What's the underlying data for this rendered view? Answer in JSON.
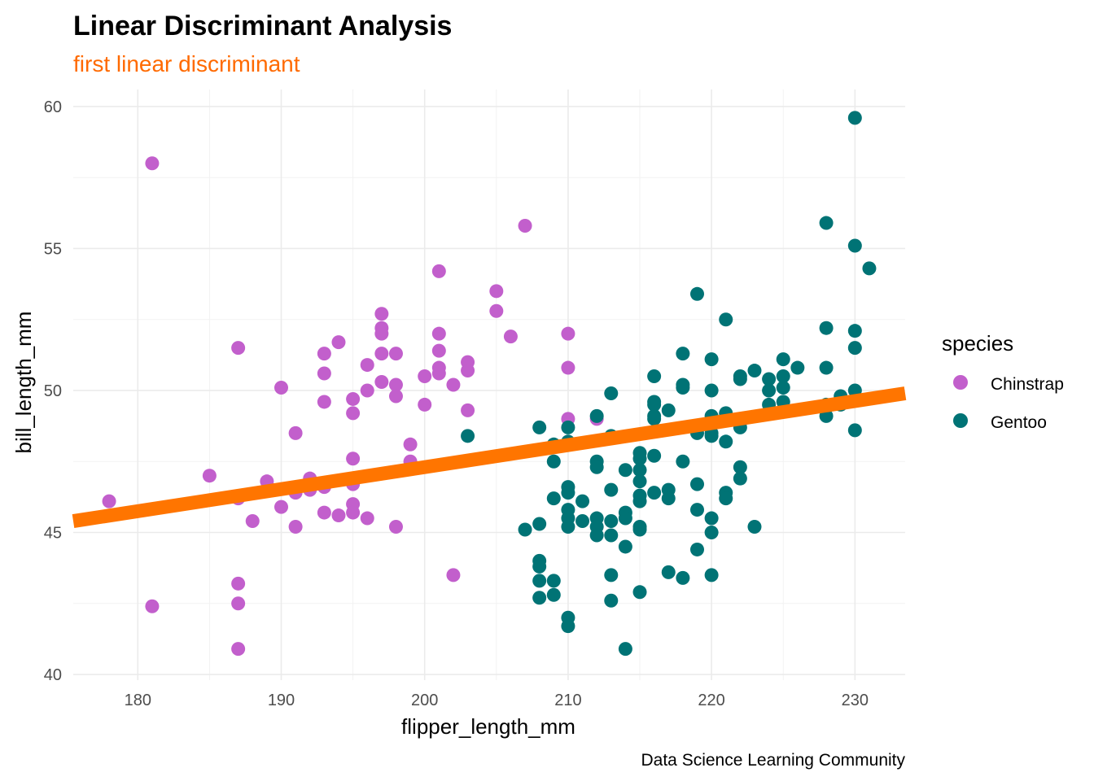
{
  "chart_data": {
    "type": "scatter",
    "title": "Linear Discriminant Analysis",
    "subtitle": "first linear discriminant",
    "xlabel": "flipper_length_mm",
    "ylabel": "bill_length_mm",
    "caption": "Data Science Learning Community",
    "xlim": [
      175.5,
      233.5
    ],
    "ylim": [
      39.8,
      60.6
    ],
    "x_ticks": [
      180,
      190,
      200,
      210,
      220,
      230
    ],
    "y_ticks": [
      40,
      45,
      50,
      55,
      60
    ],
    "grid": true,
    "legend": {
      "title": "species",
      "placement": "right",
      "entries": [
        "Chinstrap",
        "Gentoo"
      ]
    },
    "colors": {
      "Chinstrap": "#c25fcc",
      "Gentoo": "#007375",
      "line": "#ff7500",
      "subtitle": "#ff6a00"
    },
    "line": {
      "x": [
        175.5,
        233.5
      ],
      "y": [
        45.4,
        49.9
      ]
    },
    "series": [
      {
        "name": "Chinstrap",
        "points": [
          [
            178,
            46.1
          ],
          [
            181,
            58.0
          ],
          [
            181,
            42.4
          ],
          [
            185,
            47.0
          ],
          [
            187,
            51.5
          ],
          [
            187,
            46.2
          ],
          [
            187,
            43.2
          ],
          [
            187,
            42.5
          ],
          [
            187,
            40.9
          ],
          [
            188,
            45.4
          ],
          [
            189,
            46.8
          ],
          [
            190,
            50.1
          ],
          [
            190,
            45.9
          ],
          [
            191,
            48.5
          ],
          [
            191,
            46.4
          ],
          [
            191,
            45.2
          ],
          [
            192,
            46.9
          ],
          [
            192,
            46.5
          ],
          [
            193,
            51.3
          ],
          [
            193,
            50.6
          ],
          [
            193,
            49.6
          ],
          [
            193,
            46.6
          ],
          [
            193,
            45.7
          ],
          [
            194,
            51.7
          ],
          [
            194,
            45.6
          ],
          [
            195,
            49.7
          ],
          [
            195,
            49.2
          ],
          [
            195,
            47.6
          ],
          [
            195,
            46.7
          ],
          [
            195,
            46.0
          ],
          [
            195,
            45.7
          ],
          [
            196,
            50.9
          ],
          [
            196,
            50.0
          ],
          [
            196,
            45.5
          ],
          [
            197,
            52.7
          ],
          [
            197,
            52.2
          ],
          [
            197,
            52.0
          ],
          [
            197,
            51.3
          ],
          [
            197,
            50.3
          ],
          [
            198,
            51.3
          ],
          [
            198,
            50.2
          ],
          [
            198,
            49.8
          ],
          [
            198,
            45.2
          ],
          [
            199,
            48.1
          ],
          [
            199,
            47.5
          ],
          [
            200,
            50.5
          ],
          [
            200,
            49.5
          ],
          [
            201,
            54.2
          ],
          [
            201,
            52.0
          ],
          [
            201,
            51.4
          ],
          [
            201,
            50.8
          ],
          [
            201,
            50.6
          ],
          [
            202,
            50.2
          ],
          [
            202,
            43.5
          ],
          [
            203,
            51.0
          ],
          [
            203,
            50.7
          ],
          [
            203,
            49.3
          ],
          [
            205,
            53.5
          ],
          [
            205,
            52.8
          ],
          [
            206,
            51.9
          ],
          [
            207,
            55.8
          ],
          [
            210,
            52.0
          ],
          [
            210,
            50.8
          ],
          [
            210,
            49.0
          ],
          [
            212,
            49.0
          ]
        ]
      },
      {
        "name": "Gentoo",
        "points": [
          [
            203,
            48.4
          ],
          [
            207,
            45.1
          ],
          [
            208,
            48.7
          ],
          [
            208,
            45.3
          ],
          [
            208,
            44.0
          ],
          [
            208,
            43.8
          ],
          [
            208,
            43.3
          ],
          [
            208,
            42.7
          ],
          [
            209,
            48.1
          ],
          [
            209,
            47.5
          ],
          [
            209,
            46.2
          ],
          [
            209,
            43.3
          ],
          [
            209,
            42.8
          ],
          [
            210,
            48.7
          ],
          [
            210,
            48.2
          ],
          [
            210,
            46.6
          ],
          [
            210,
            46.4
          ],
          [
            210,
            45.8
          ],
          [
            210,
            45.5
          ],
          [
            210,
            45.2
          ],
          [
            210,
            42.0
          ],
          [
            210,
            41.7
          ],
          [
            211,
            46.1
          ],
          [
            211,
            45.4
          ],
          [
            212,
            49.1
          ],
          [
            212,
            47.5
          ],
          [
            212,
            47.3
          ],
          [
            212,
            45.5
          ],
          [
            212,
            45.2
          ],
          [
            212,
            44.9
          ],
          [
            213,
            49.9
          ],
          [
            213,
            48.4
          ],
          [
            213,
            46.5
          ],
          [
            213,
            45.4
          ],
          [
            213,
            44.9
          ],
          [
            213,
            43.5
          ],
          [
            213,
            42.6
          ],
          [
            214,
            47.2
          ],
          [
            214,
            45.7
          ],
          [
            214,
            45.5
          ],
          [
            214,
            44.5
          ],
          [
            214,
            40.9
          ],
          [
            215,
            47.8
          ],
          [
            215,
            47.6
          ],
          [
            215,
            47.2
          ],
          [
            215,
            46.8
          ],
          [
            215,
            46.3
          ],
          [
            215,
            46.1
          ],
          [
            215,
            45.2
          ],
          [
            215,
            45.1
          ],
          [
            215,
            42.9
          ],
          [
            216,
            50.5
          ],
          [
            216,
            49.6
          ],
          [
            216,
            49.5
          ],
          [
            216,
            49.1
          ],
          [
            216,
            49.0
          ],
          [
            216,
            47.7
          ],
          [
            216,
            46.4
          ],
          [
            217,
            49.3
          ],
          [
            217,
            46.5
          ],
          [
            217,
            46.2
          ],
          [
            217,
            43.6
          ],
          [
            218,
            51.3
          ],
          [
            218,
            50.2
          ],
          [
            218,
            50.1
          ],
          [
            218,
            47.5
          ],
          [
            218,
            43.4
          ],
          [
            219,
            53.4
          ],
          [
            219,
            48.7
          ],
          [
            219,
            48.5
          ],
          [
            219,
            46.7
          ],
          [
            219,
            45.8
          ],
          [
            219,
            44.4
          ],
          [
            220,
            51.1
          ],
          [
            220,
            50.0
          ],
          [
            220,
            49.1
          ],
          [
            220,
            48.8
          ],
          [
            220,
            48.5
          ],
          [
            220,
            48.4
          ],
          [
            220,
            45.5
          ],
          [
            220,
            45.0
          ],
          [
            220,
            43.5
          ],
          [
            221,
            52.5
          ],
          [
            221,
            49.2
          ],
          [
            221,
            48.2
          ],
          [
            221,
            46.4
          ],
          [
            221,
            46.2
          ],
          [
            222,
            50.5
          ],
          [
            222,
            50.4
          ],
          [
            222,
            48.7
          ],
          [
            222,
            47.3
          ],
          [
            222,
            46.9
          ],
          [
            223,
            50.7
          ],
          [
            223,
            45.2
          ],
          [
            224,
            50.4
          ],
          [
            224,
            50.0
          ],
          [
            224,
            49.5
          ],
          [
            225,
            51.1
          ],
          [
            225,
            50.5
          ],
          [
            225,
            50.1
          ],
          [
            225,
            49.6
          ],
          [
            226,
            50.8
          ],
          [
            228,
            55.9
          ],
          [
            228,
            52.2
          ],
          [
            228,
            50.8
          ],
          [
            228,
            49.5
          ],
          [
            228,
            49.1
          ],
          [
            229,
            49.8
          ],
          [
            229,
            49.5
          ],
          [
            230,
            59.6
          ],
          [
            230,
            55.1
          ],
          [
            230,
            52.1
          ],
          [
            230,
            51.5
          ],
          [
            230,
            50.0
          ],
          [
            230,
            48.6
          ],
          [
            231,
            54.3
          ]
        ]
      }
    ]
  }
}
